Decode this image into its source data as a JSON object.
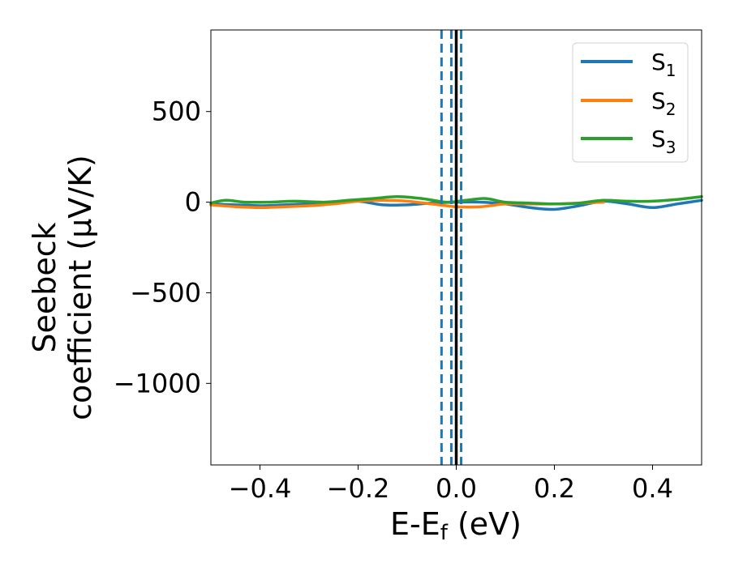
{
  "chart_data": {
    "type": "line",
    "xlabel": "E-E",
    "xlabel_sub": "f",
    "xlabel_unit": " (eV)",
    "ylabel_line1": "Seebeck",
    "ylabel_line2": "coefficient  (μV/K)",
    "xlim": [
      -0.5,
      0.5
    ],
    "ylim": [
      -1450,
      950
    ],
    "xticks": [
      -0.4,
      -0.2,
      0.0,
      0.2,
      0.4
    ],
    "xtick_labels": [
      "−0.4",
      "−0.2",
      "0.0",
      "0.2",
      "0.4"
    ],
    "yticks": [
      500,
      0,
      -500,
      -1000
    ],
    "ytick_labels": [
      "500",
      "0",
      "−500",
      "−1000"
    ],
    "grid": false,
    "legend_position": "top-right",
    "vlines": [
      {
        "x": 0.0,
        "style": "solid",
        "color": "#000000"
      },
      {
        "x": -0.03,
        "style": "dashed",
        "color": "#1f77b4"
      },
      {
        "x": -0.01,
        "style": "dashed",
        "color": "#1f77b4"
      },
      {
        "x": 0.01,
        "style": "dashed",
        "color": "#1f77b4"
      }
    ],
    "series": [
      {
        "name": "S",
        "sub": "1",
        "color": "#1f77b4",
        "x": [
          -0.5,
          -0.45,
          -0.4,
          -0.35,
          -0.3,
          -0.25,
          -0.2,
          -0.15,
          -0.1,
          -0.05,
          0.0,
          0.05,
          0.1,
          0.15,
          0.2,
          0.25,
          0.3,
          0.35,
          0.4,
          0.45,
          0.5
        ],
        "y": [
          -10,
          -15,
          -20,
          -15,
          -10,
          -5,
          5,
          -15,
          -15,
          -5,
          0,
          0,
          -10,
          -30,
          -40,
          -20,
          5,
          -10,
          -30,
          -10,
          10
        ]
      },
      {
        "name": "S",
        "sub": "2",
        "color": "#ff7f0e",
        "x": [
          -0.5,
          -0.45,
          -0.4,
          -0.35,
          -0.3,
          -0.25,
          -0.2,
          -0.15,
          -0.1,
          -0.05,
          0.0,
          0.05,
          0.1,
          0.15,
          0.2,
          0.25,
          0.3
        ],
        "y": [
          -15,
          -25,
          -30,
          -25,
          -20,
          -10,
          5,
          10,
          5,
          -10,
          -25,
          -25,
          -10,
          -10,
          -10,
          -5,
          0
        ]
      },
      {
        "name": "S",
        "sub": "3",
        "color": "#2ca02c",
        "x": [
          -0.5,
          -0.47,
          -0.43,
          -0.38,
          -0.33,
          -0.27,
          -0.22,
          -0.17,
          -0.12,
          -0.07,
          -0.02,
          0.02,
          0.06,
          0.1,
          0.15,
          0.2,
          0.25,
          0.3,
          0.35,
          0.4,
          0.45,
          0.5
        ],
        "y": [
          -5,
          10,
          0,
          0,
          5,
          0,
          10,
          20,
          30,
          20,
          0,
          10,
          20,
          0,
          -5,
          -10,
          -5,
          10,
          5,
          5,
          15,
          30
        ]
      }
    ]
  }
}
